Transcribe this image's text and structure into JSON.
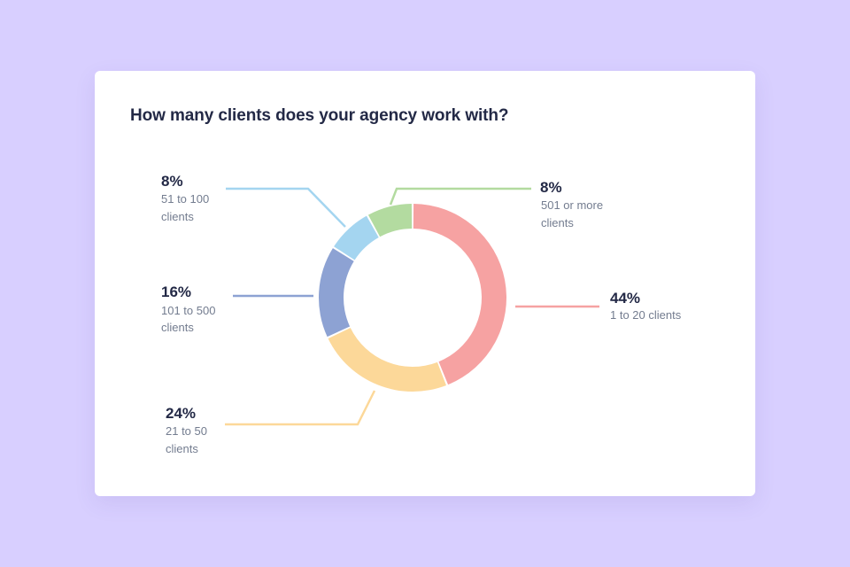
{
  "card": {
    "title": "How many clients does your agency work with?"
  },
  "chart_data": {
    "type": "pie",
    "title": "How many clients does your agency work with?",
    "slices": [
      {
        "label": "1 to 20 clients",
        "percent_label": "44%",
        "value": 44,
        "color": "#f6a2a2"
      },
      {
        "label": "21 to 50 clients",
        "percent_label": "24%",
        "value": 24,
        "color": "#fcd899"
      },
      {
        "label": "101 to 500 clients",
        "percent_label": "16%",
        "value": 16,
        "color": "#8da2d3"
      },
      {
        "label": "51 to 100 clients",
        "percent_label": "8%",
        "value": 8,
        "color": "#a4d5f0"
      },
      {
        "label": "501 or more clients",
        "percent_label": "8%",
        "value": 8,
        "color": "#b3dba0"
      }
    ]
  }
}
